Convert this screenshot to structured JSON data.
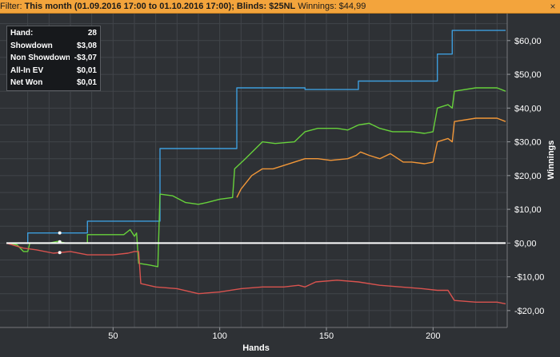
{
  "filter": {
    "prefix": "Filter: ",
    "bold_text": "This month (01.09.2016 17:00 to 01.10.2016 17:00); Blinds: $25NL",
    "winnings_text": " Winnings: $44,99",
    "close_icon": "close-icon"
  },
  "info": {
    "rows": [
      {
        "label": "Hand:",
        "value": "28"
      },
      {
        "label": "Showdown",
        "value": "$3,08"
      },
      {
        "label": "Non Showdown",
        "value": "-$3,07"
      },
      {
        "label": "All-In EV",
        "value": "$0,01"
      },
      {
        "label": "Net Won",
        "value": "$0,01"
      }
    ]
  },
  "chart_data": {
    "type": "line",
    "xlabel": "Hands",
    "ylabel": "Winnings",
    "xlim": [
      0,
      234
    ],
    "ylim": [
      -25,
      68
    ],
    "x_ticks": [
      50,
      100,
      150,
      200
    ],
    "y_ticks": [
      {
        "value": 60,
        "label": "$60,00"
      },
      {
        "value": 50,
        "label": "$50,00"
      },
      {
        "value": 40,
        "label": "$40,00"
      },
      {
        "value": 30,
        "label": "$30,00"
      },
      {
        "value": 20,
        "label": "$20,00"
      },
      {
        "value": 10,
        "label": "$10,00"
      },
      {
        "value": 0,
        "label": "$0,00"
      },
      {
        "value": -10,
        "label": "-$10,00"
      },
      {
        "value": -20,
        "label": "-$20,00"
      }
    ],
    "grid": true,
    "legend": "none",
    "marker_x": 25,
    "series": [
      {
        "color": "#3d9ddc",
        "points": [
          [
            0,
            0
          ],
          [
            10,
            0
          ],
          [
            10,
            3
          ],
          [
            38,
            3
          ],
          [
            38,
            6.5
          ],
          [
            72,
            6.5
          ],
          [
            72,
            28
          ],
          [
            108,
            28
          ],
          [
            108,
            46
          ],
          [
            140,
            46
          ],
          [
            140,
            45.5
          ],
          [
            165,
            45.5
          ],
          [
            165,
            48
          ],
          [
            202,
            48
          ],
          [
            202,
            56
          ],
          [
            209,
            56
          ],
          [
            209,
            63
          ],
          [
            234,
            63
          ]
        ]
      },
      {
        "color": "#67d13b",
        "points": [
          [
            0,
            0
          ],
          [
            5,
            -0.5
          ],
          [
            8,
            -2.5
          ],
          [
            10,
            -2.5
          ],
          [
            11,
            0
          ],
          [
            20,
            0
          ],
          [
            24,
            0.5
          ],
          [
            28,
            0
          ],
          [
            38,
            0
          ],
          [
            38,
            2.5
          ],
          [
            55,
            2.5
          ],
          [
            58,
            4
          ],
          [
            60,
            2
          ],
          [
            61,
            3
          ],
          [
            62,
            -6
          ],
          [
            67,
            -6.5
          ],
          [
            71,
            -7
          ],
          [
            72,
            14.5
          ],
          [
            78,
            14
          ],
          [
            84,
            12
          ],
          [
            90,
            11.5
          ],
          [
            94,
            12
          ],
          [
            100,
            13
          ],
          [
            106,
            13.5
          ],
          [
            107,
            22
          ],
          [
            112,
            25
          ],
          [
            120,
            30
          ],
          [
            126,
            29.5
          ],
          [
            135,
            30
          ],
          [
            140,
            33
          ],
          [
            146,
            34
          ],
          [
            155,
            34
          ],
          [
            160,
            33.5
          ],
          [
            165,
            35
          ],
          [
            170,
            35.5
          ],
          [
            175,
            34
          ],
          [
            181,
            33
          ],
          [
            186,
            33
          ],
          [
            190,
            33
          ],
          [
            196,
            32.5
          ],
          [
            200,
            33
          ],
          [
            202,
            40
          ],
          [
            207,
            41
          ],
          [
            209,
            40
          ],
          [
            210,
            45
          ],
          [
            220,
            46
          ],
          [
            230,
            46
          ],
          [
            234,
            45
          ]
        ]
      },
      {
        "color": "#f29738",
        "points": [
          [
            108,
            13.5
          ],
          [
            110,
            16
          ],
          [
            115,
            20
          ],
          [
            120,
            22
          ],
          [
            125,
            22
          ],
          [
            130,
            23
          ],
          [
            135,
            24
          ],
          [
            140,
            25
          ],
          [
            146,
            25
          ],
          [
            152,
            24.5
          ],
          [
            160,
            25
          ],
          [
            164,
            26
          ],
          [
            166,
            27
          ],
          [
            170,
            26
          ],
          [
            175,
            25
          ],
          [
            180,
            26.5
          ],
          [
            186,
            24
          ],
          [
            190,
            24
          ],
          [
            196,
            23.5
          ],
          [
            200,
            24
          ],
          [
            202,
            30
          ],
          [
            207,
            31
          ],
          [
            209,
            30
          ],
          [
            210,
            36
          ],
          [
            220,
            37
          ],
          [
            230,
            37
          ],
          [
            234,
            36
          ]
        ]
      },
      {
        "color": "#d9534f",
        "points": [
          [
            0,
            0
          ],
          [
            8,
            -1.5
          ],
          [
            14,
            -2
          ],
          [
            22,
            -3
          ],
          [
            30,
            -2.5
          ],
          [
            38,
            -3.5
          ],
          [
            50,
            -3.5
          ],
          [
            57,
            -3
          ],
          [
            60,
            -2.5
          ],
          [
            62,
            -2.5
          ],
          [
            63,
            -12
          ],
          [
            70,
            -13
          ],
          [
            80,
            -13.5
          ],
          [
            90,
            -15
          ],
          [
            100,
            -14.5
          ],
          [
            110,
            -13.5
          ],
          [
            120,
            -13
          ],
          [
            130,
            -13
          ],
          [
            137,
            -12.5
          ],
          [
            140,
            -13
          ],
          [
            145,
            -11.5
          ],
          [
            155,
            -11
          ],
          [
            165,
            -11.5
          ],
          [
            175,
            -12.5
          ],
          [
            185,
            -13
          ],
          [
            195,
            -13.5
          ],
          [
            202,
            -14
          ],
          [
            207,
            -14
          ],
          [
            210,
            -17
          ],
          [
            220,
            -17.5
          ],
          [
            230,
            -17.5
          ],
          [
            234,
            -18
          ]
        ]
      },
      {
        "color": "#ffffff",
        "points": [
          [
            0,
            0
          ],
          [
            234,
            0
          ]
        ]
      }
    ]
  }
}
